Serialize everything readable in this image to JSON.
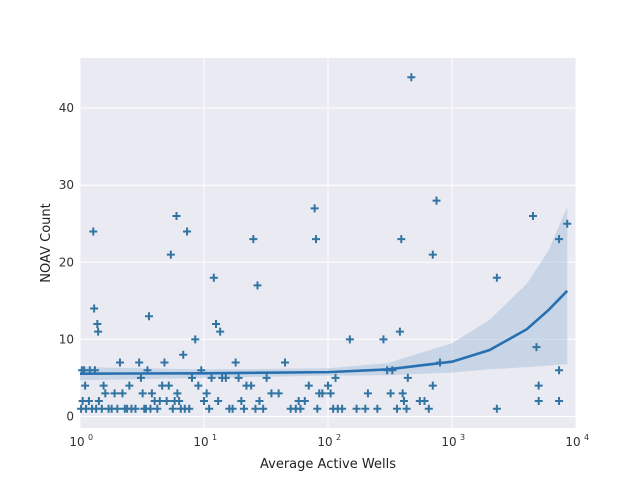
{
  "chart_data": {
    "type": "scatter",
    "title": "",
    "xlabel": "Average Active Wells",
    "ylabel": "NOAV Count",
    "x_scale": "log",
    "xlim": [
      1,
      10000
    ],
    "ylim": [
      -1.5,
      46.5
    ],
    "grid": true,
    "x_ticks": [
      {
        "value": 1,
        "base": "10",
        "exp": "0"
      },
      {
        "value": 10,
        "base": "10",
        "exp": "1"
      },
      {
        "value": 100,
        "base": "10",
        "exp": "2"
      },
      {
        "value": 1000,
        "base": "10",
        "exp": "3"
      },
      {
        "value": 10000,
        "base": "10",
        "exp": "4"
      }
    ],
    "y_ticks": [
      0,
      10,
      20,
      30,
      40
    ],
    "colors": {
      "background": "#eaeaf2",
      "grid": "#ffffff",
      "marker": "#3274a1",
      "fit_line": "#2870b0",
      "band": "#a9c2dd"
    },
    "marker_shape": "plus",
    "points": [
      [
        1.02,
        1
      ],
      [
        1.04,
        6
      ],
      [
        1.05,
        2
      ],
      [
        1.08,
        6
      ],
      [
        1.1,
        4
      ],
      [
        1.12,
        1
      ],
      [
        1.18,
        2
      ],
      [
        1.2,
        6
      ],
      [
        1.25,
        1
      ],
      [
        1.28,
        24
      ],
      [
        1.3,
        14
      ],
      [
        1.32,
        6
      ],
      [
        1.35,
        1
      ],
      [
        1.38,
        12
      ],
      [
        1.4,
        11
      ],
      [
        1.42,
        2
      ],
      [
        1.5,
        1
      ],
      [
        1.55,
        4
      ],
      [
        1.6,
        3
      ],
      [
        1.7,
        1
      ],
      [
        1.8,
        1
      ],
      [
        1.9,
        3
      ],
      [
        2.0,
        1
      ],
      [
        2.1,
        7
      ],
      [
        2.2,
        3
      ],
      [
        2.3,
        1
      ],
      [
        2.4,
        1
      ],
      [
        2.5,
        4
      ],
      [
        2.6,
        1
      ],
      [
        2.8,
        1
      ],
      [
        3.0,
        7
      ],
      [
        3.1,
        5
      ],
      [
        3.2,
        3
      ],
      [
        3.3,
        1
      ],
      [
        3.4,
        1
      ],
      [
        3.5,
        6
      ],
      [
        3.6,
        13
      ],
      [
        3.7,
        1
      ],
      [
        3.8,
        3
      ],
      [
        4.0,
        2
      ],
      [
        4.2,
        1
      ],
      [
        4.4,
        2
      ],
      [
        4.6,
        4
      ],
      [
        4.8,
        7
      ],
      [
        5.0,
        2
      ],
      [
        5.2,
        4
      ],
      [
        5.4,
        21
      ],
      [
        5.6,
        1
      ],
      [
        5.8,
        2
      ],
      [
        6.0,
        26
      ],
      [
        6.1,
        3
      ],
      [
        6.3,
        2
      ],
      [
        6.5,
        1
      ],
      [
        6.8,
        8
      ],
      [
        7.0,
        1
      ],
      [
        7.3,
        24
      ],
      [
        7.6,
        1
      ],
      [
        8.0,
        5
      ],
      [
        8.5,
        10
      ],
      [
        9.0,
        4
      ],
      [
        9.5,
        6
      ],
      [
        10,
        2
      ],
      [
        10.5,
        3
      ],
      [
        11,
        1
      ],
      [
        11.5,
        5
      ],
      [
        12,
        18
      ],
      [
        12.5,
        12
      ],
      [
        13,
        2
      ],
      [
        13.5,
        11
      ],
      [
        14,
        5
      ],
      [
        15,
        5
      ],
      [
        16,
        1
      ],
      [
        17,
        1
      ],
      [
        18,
        7
      ],
      [
        19,
        5
      ],
      [
        20,
        2
      ],
      [
        21,
        1
      ],
      [
        22,
        4
      ],
      [
        24,
        4
      ],
      [
        25,
        23
      ],
      [
        26,
        1
      ],
      [
        27,
        17
      ],
      [
        28,
        2
      ],
      [
        30,
        1
      ],
      [
        32,
        5
      ],
      [
        35,
        3
      ],
      [
        40,
        3
      ],
      [
        45,
        7
      ],
      [
        50,
        1
      ],
      [
        55,
        1
      ],
      [
        58,
        2
      ],
      [
        60,
        1
      ],
      [
        65,
        2
      ],
      [
        70,
        4
      ],
      [
        78,
        27
      ],
      [
        80,
        23
      ],
      [
        82,
        1
      ],
      [
        85,
        3
      ],
      [
        90,
        3
      ],
      [
        100,
        4
      ],
      [
        105,
        3
      ],
      [
        110,
        1
      ],
      [
        115,
        5
      ],
      [
        120,
        1
      ],
      [
        130,
        1
      ],
      [
        150,
        10
      ],
      [
        170,
        1
      ],
      [
        200,
        1
      ],
      [
        210,
        3
      ],
      [
        250,
        1
      ],
      [
        280,
        10
      ],
      [
        300,
        6
      ],
      [
        320,
        3
      ],
      [
        330,
        6
      ],
      [
        360,
        1
      ],
      [
        380,
        11
      ],
      [
        390,
        23
      ],
      [
        400,
        3
      ],
      [
        410,
        2
      ],
      [
        430,
        1
      ],
      [
        440,
        5
      ],
      [
        470,
        44
      ],
      [
        550,
        2
      ],
      [
        600,
        2
      ],
      [
        650,
        1
      ],
      [
        700,
        4
      ],
      [
        700,
        21
      ],
      [
        750,
        28
      ],
      [
        800,
        7
      ],
      [
        2300,
        1
      ],
      [
        2300,
        18
      ],
      [
        4500,
        26
      ],
      [
        4800,
        9
      ],
      [
        5000,
        4
      ],
      [
        5000,
        2
      ],
      [
        7300,
        2
      ],
      [
        7300,
        6
      ],
      [
        7300,
        23
      ],
      [
        8500,
        25
      ]
    ],
    "fit_line": [
      [
        1,
        5.55
      ],
      [
        10,
        5.6
      ],
      [
        100,
        5.75
      ],
      [
        300,
        6.1
      ],
      [
        1000,
        7.1
      ],
      [
        2000,
        8.6
      ],
      [
        4000,
        11.3
      ],
      [
        6000,
        13.8
      ],
      [
        8500,
        16.3
      ]
    ],
    "ci_upper": [
      [
        1,
        6.4
      ],
      [
        10,
        6.1
      ],
      [
        100,
        6.25
      ],
      [
        300,
        6.9
      ],
      [
        1000,
        9.5
      ],
      [
        2000,
        12.5
      ],
      [
        4000,
        17.2
      ],
      [
        6000,
        21.5
      ],
      [
        8500,
        27.2
      ]
    ],
    "ci_lower": [
      [
        1,
        4.7
      ],
      [
        10,
        5.0
      ],
      [
        100,
        5.3
      ],
      [
        300,
        5.35
      ],
      [
        1000,
        5.7
      ],
      [
        2000,
        6.1
      ],
      [
        4000,
        6.4
      ],
      [
        6000,
        6.6
      ],
      [
        8500,
        6.8
      ]
    ]
  }
}
